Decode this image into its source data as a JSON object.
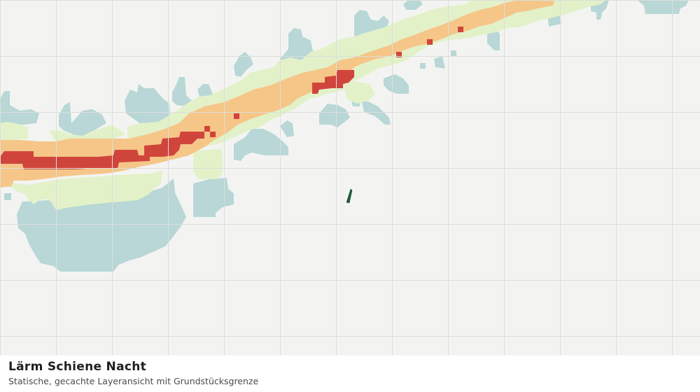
{
  "caption": {
    "title": "Lärm Schiene Nacht",
    "subtitle": "Statische, gecachte Layeransicht mit Grundstücksgrenze"
  },
  "map": {
    "tile_grid": "visible",
    "background_color": "#f3f4f2",
    "grid_line_color": "#dcdedb",
    "legend_classes": [
      {
        "key": "lowest",
        "color": "#b8d7d6"
      },
      {
        "key": "low",
        "color": "#e3f1c9"
      },
      {
        "key": "medium",
        "color": "#f5c688"
      },
      {
        "key": "high",
        "color": "#d0453b"
      }
    ],
    "parcel_boundary": {
      "icon": "parcel-boundary-marker",
      "color": "#1c5a36"
    }
  }
}
